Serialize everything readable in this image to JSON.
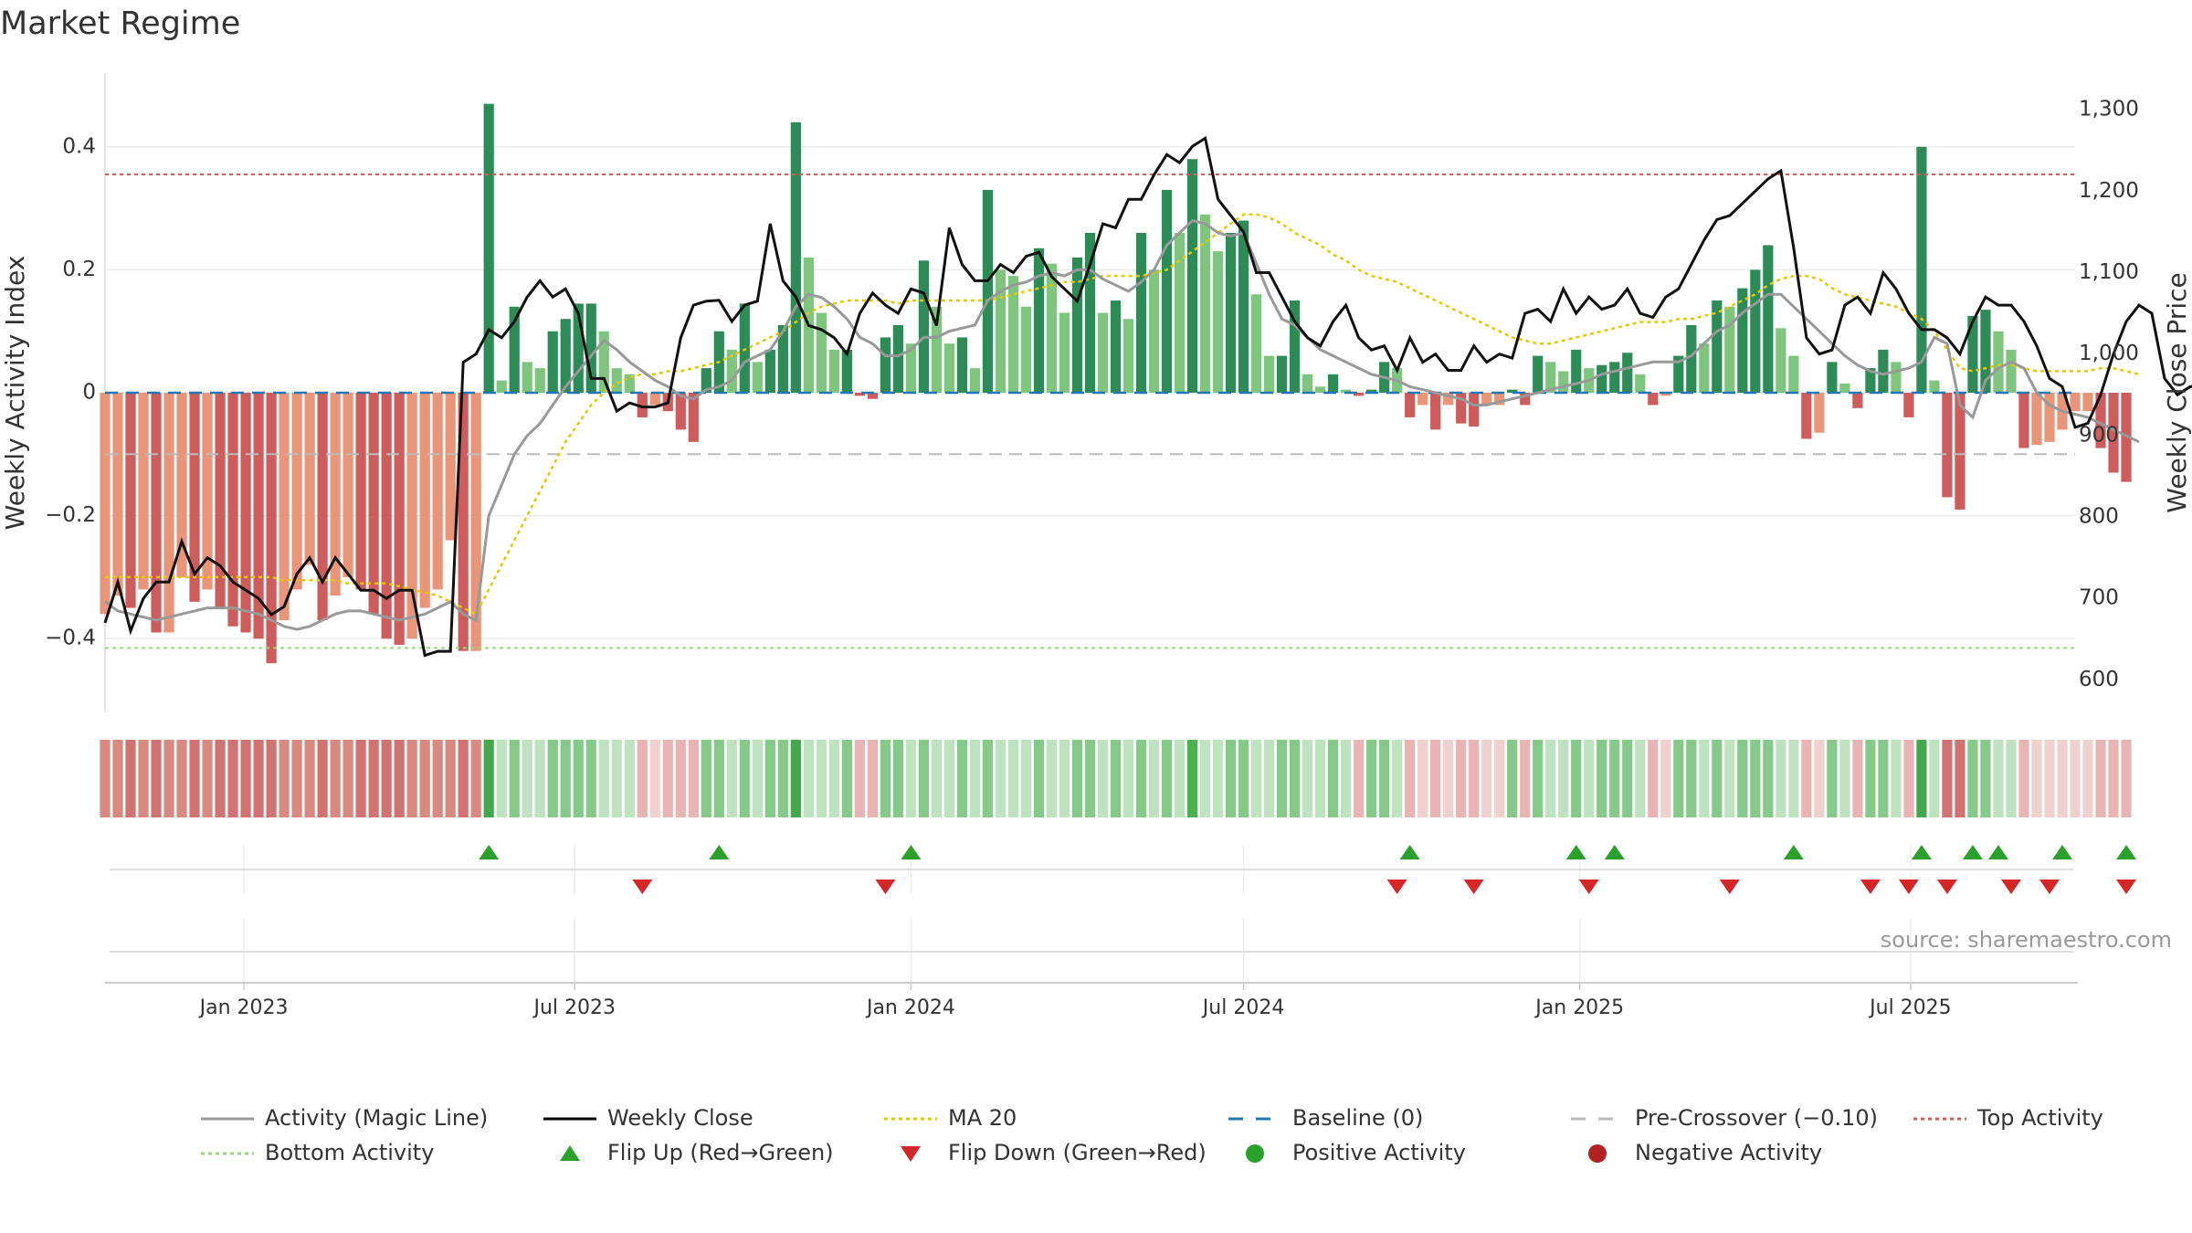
{
  "title": "Market Regime",
  "source": "source: sharemaestro.com",
  "legend": [
    {
      "label": "Activity (Magic Line)",
      "kind": "line",
      "color": "#999999",
      "dash": "solid"
    },
    {
      "label": "Weekly Close",
      "kind": "line",
      "color": "#000000",
      "dash": "solid"
    },
    {
      "label": "MA 20",
      "kind": "line",
      "color": "#e6c800",
      "dash": "dot"
    },
    {
      "label": "Baseline (0)",
      "kind": "line",
      "color": "#1f77b4",
      "dash": "dash"
    },
    {
      "label": "Pre-Crossover (−0.10)",
      "kind": "line",
      "color": "#bbbbbb",
      "dash": "dash"
    },
    {
      "label": "Top Activity",
      "kind": "line",
      "color": "#e05555",
      "dash": "dot"
    },
    {
      "label": "Bottom Activity",
      "kind": "line",
      "color": "#9cd67f",
      "dash": "dot"
    },
    {
      "label": "Flip Up (Red→Green)",
      "kind": "tri-up",
      "color": "#2ca02c"
    },
    {
      "label": "Flip Down (Green→Red)",
      "kind": "tri-down",
      "color": "#d62728"
    },
    {
      "label": "Positive Activity",
      "kind": "dot",
      "color": "#2ca02c"
    },
    {
      "label": "Negative Activity",
      "kind": "dot",
      "color": "#b22222"
    }
  ],
  "chart_data": {
    "type": "bar",
    "ylabel": "Weekly Activity Index",
    "y2label": "Weekly Close Price",
    "ylim": [
      -0.52,
      0.52
    ],
    "y2lim": [
      560,
      1345
    ],
    "yticks": [
      {
        "v": 0.4,
        "label": "0.4"
      },
      {
        "v": 0.2,
        "label": "0.2"
      },
      {
        "v": 0,
        "label": "0"
      },
      {
        "v": -0.2,
        "label": "−0.2"
      },
      {
        "v": -0.4,
        "label": "−0.4"
      }
    ],
    "y2ticks": [
      {
        "v": 1300,
        "label": "1,300"
      },
      {
        "v": 1200,
        "label": "1,200"
      },
      {
        "v": 1100,
        "label": "1,100"
      },
      {
        "v": 1000,
        "label": "1,000"
      },
      {
        "v": 900,
        "label": "900"
      },
      {
        "v": 800,
        "label": "800"
      },
      {
        "v": 700,
        "label": "700"
      },
      {
        "v": 600,
        "label": "600"
      }
    ],
    "xlim": [
      "2022-10-17",
      "2025-09-29"
    ],
    "xticks": [
      {
        "date": "2023-01-01",
        "label": "Jan 2023"
      },
      {
        "date": "2023-07-01",
        "label": "Jul 2023"
      },
      {
        "date": "2024-01-01",
        "label": "Jan 2024"
      },
      {
        "date": "2024-07-01",
        "label": "Jul 2024"
      },
      {
        "date": "2025-01-01",
        "label": "Jan 2025"
      },
      {
        "date": "2025-07-01",
        "label": "Jul 2025"
      }
    ],
    "start_week": "2022-10-17",
    "bars": [
      -0.36,
      -0.33,
      -0.35,
      -0.32,
      -0.39,
      -0.39,
      -0.3,
      -0.34,
      -0.32,
      -0.35,
      -0.38,
      -0.39,
      -0.4,
      -0.44,
      -0.37,
      -0.32,
      -0.28,
      -0.37,
      -0.33,
      -0.3,
      -0.32,
      -0.36,
      -0.4,
      -0.41,
      -0.4,
      -0.35,
      -0.32,
      -0.24,
      -0.42,
      -0.42,
      0.47,
      0.02,
      0.14,
      0.05,
      0.04,
      0.1,
      0.12,
      0.145,
      0.145,
      0.1,
      0.04,
      0.03,
      -0.04,
      -0.02,
      -0.03,
      -0.06,
      -0.08,
      0.04,
      0.1,
      0.07,
      0.145,
      0.05,
      0.07,
      0.11,
      0.44,
      0.22,
      0.13,
      0.07,
      0.07,
      -0.005,
      -0.01,
      0.09,
      0.11,
      0.08,
      0.215,
      0.14,
      0.08,
      0.09,
      0.04,
      0.33,
      0.2,
      0.19,
      0.14,
      0.235,
      0.21,
      0.13,
      0.22,
      0.26,
      0.13,
      0.15,
      0.12,
      0.26,
      0.2,
      0.33,
      0.26,
      0.38,
      0.29,
      0.23,
      0.26,
      0.28,
      0.16,
      0.06,
      0.06,
      0.15,
      0.03,
      0.01,
      0.03,
      0.005,
      -0.005,
      0.005,
      0.05,
      0.04,
      -0.04,
      -0.02,
      -0.06,
      -0.02,
      -0.05,
      -0.055,
      -0.02,
      -0.02,
      0.005,
      -0.02,
      0.06,
      0.05,
      0.035,
      0.07,
      0.04,
      0.045,
      0.05,
      0.065,
      0.03,
      -0.02,
      -0.005,
      0.06,
      0.11,
      0.08,
      0.15,
      0.14,
      0.17,
      0.2,
      0.24,
      0.105,
      0.06,
      -0.075,
      -0.065,
      0.05,
      0.015,
      -0.025,
      0.04,
      0.07,
      0.05,
      -0.04,
      0.4,
      0.02,
      -0.17,
      -0.19,
      0.125,
      0.135,
      0.1,
      0.07,
      -0.09,
      -0.085,
      -0.08,
      -0.06,
      -0.03,
      -0.03,
      -0.09,
      -0.13,
      -0.145
    ],
    "flip_up": [
      30,
      48,
      63,
      102,
      115,
      118,
      132,
      142,
      146,
      148,
      153,
      158
    ],
    "flip_down": [
      42,
      61,
      101,
      107,
      116,
      127,
      138,
      141,
      144,
      149,
      152,
      158
    ],
    "close": [
      670,
      720,
      660,
      700,
      720,
      720,
      770,
      730,
      750,
      740,
      720,
      710,
      700,
      680,
      690,
      730,
      750,
      720,
      750,
      730,
      710,
      710,
      700,
      710,
      710,
      630,
      635,
      635,
      990,
      1000,
      1030,
      1020,
      1040,
      1070,
      1090,
      1070,
      1080,
      1050,
      970,
      970,
      930,
      940,
      935,
      935,
      940,
      1020,
      1060,
      1065,
      1066,
      1040,
      1060,
      1065,
      1160,
      1090,
      1070,
      1035,
      1030,
      1020,
      1000,
      1050,
      1075,
      1060,
      1050,
      1080,
      1075,
      1035,
      1155,
      1110,
      1090,
      1090,
      1110,
      1100,
      1120,
      1125,
      1095,
      1080,
      1065,
      1110,
      1160,
      1155,
      1190,
      1190,
      1220,
      1245,
      1235,
      1255,
      1265,
      1190,
      1170,
      1150,
      1100,
      1100,
      1070,
      1040,
      1020,
      1010,
      1040,
      1060,
      1020,
      1005,
      1010,
      980,
      1020,
      990,
      1000,
      980,
      980,
      1010,
      990,
      1000,
      995,
      1050,
      1055,
      1040,
      1080,
      1050,
      1070,
      1055,
      1060,
      1080,
      1050,
      1045,
      1070,
      1080,
      1110,
      1140,
      1165,
      1170,
      1185,
      1200,
      1215,
      1225,
      1130,
      1020,
      1000,
      1005,
      1060,
      1070,
      1050,
      1100,
      1080,
      1050,
      1030,
      1030,
      1020,
      1000,
      1040,
      1070,
      1060,
      1060,
      1040,
      1010,
      970,
      960,
      910,
      915,
      950,
      1000,
      1040,
      1060,
      1050,
      970,
      950,
      960,
      960,
      980,
      990,
      1000,
      1010,
      960,
      950,
      940
    ],
    "magic_line": [
      -0.34,
      -0.355,
      -0.36,
      -0.365,
      -0.37,
      -0.365,
      -0.36,
      -0.355,
      -0.35,
      -0.35,
      -0.35,
      -0.355,
      -0.36,
      -0.37,
      -0.38,
      -0.385,
      -0.38,
      -0.37,
      -0.36,
      -0.355,
      -0.355,
      -0.36,
      -0.365,
      -0.37,
      -0.365,
      -0.36,
      -0.35,
      -0.34,
      -0.36,
      -0.37,
      -0.2,
      -0.15,
      -0.1,
      -0.07,
      -0.05,
      -0.02,
      0.01,
      0.035,
      0.06,
      0.085,
      0.07,
      0.05,
      0.035,
      0.02,
      0.01,
      -0.005,
      -0.01,
      0.005,
      0.01,
      0.02,
      0.05,
      0.06,
      0.07,
      0.1,
      0.14,
      0.16,
      0.155,
      0.14,
      0.12,
      0.09,
      0.08,
      0.06,
      0.06,
      0.07,
      0.09,
      0.09,
      0.1,
      0.105,
      0.11,
      0.15,
      0.165,
      0.175,
      0.18,
      0.19,
      0.195,
      0.19,
      0.2,
      0.2,
      0.185,
      0.175,
      0.165,
      0.18,
      0.2,
      0.24,
      0.26,
      0.28,
      0.275,
      0.26,
      0.255,
      0.26,
      0.21,
      0.16,
      0.12,
      0.11,
      0.09,
      0.07,
      0.06,
      0.05,
      0.04,
      0.03,
      0.025,
      0.02,
      0.01,
      0.005,
      0.0,
      -0.005,
      -0.01,
      -0.02,
      -0.02,
      -0.015,
      -0.01,
      -0.005,
      0.0,
      0.005,
      0.01,
      0.015,
      0.02,
      0.03,
      0.035,
      0.04,
      0.045,
      0.05,
      0.05,
      0.05,
      0.06,
      0.08,
      0.1,
      0.11,
      0.13,
      0.145,
      0.16,
      0.16,
      0.14,
      0.12,
      0.1,
      0.08,
      0.06,
      0.045,
      0.035,
      0.03,
      0.035,
      0.04,
      0.05,
      0.09,
      0.08,
      -0.02,
      -0.04,
      0.02,
      0.04,
      0.05,
      0.04,
      0.0,
      -0.02,
      -0.03,
      -0.035,
      -0.04,
      -0.05,
      -0.06,
      -0.07,
      -0.08
    ],
    "ma20": [
      -0.3,
      -0.3,
      -0.3,
      -0.3,
      -0.3,
      -0.3,
      -0.3,
      -0.3,
      -0.3,
      -0.3,
      -0.3,
      -0.3,
      -0.3,
      -0.3,
      -0.305,
      -0.305,
      -0.305,
      -0.305,
      -0.305,
      -0.31,
      -0.31,
      -0.31,
      -0.31,
      -0.315,
      -0.32,
      -0.325,
      -0.33,
      -0.34,
      -0.35,
      -0.36,
      -0.32,
      -0.28,
      -0.24,
      -0.2,
      -0.16,
      -0.12,
      -0.08,
      -0.05,
      -0.02,
      0.0,
      0.015,
      0.025,
      0.03,
      0.03,
      0.035,
      0.035,
      0.04,
      0.045,
      0.05,
      0.06,
      0.07,
      0.08,
      0.09,
      0.1,
      0.115,
      0.13,
      0.14,
      0.145,
      0.15,
      0.15,
      0.15,
      0.15,
      0.145,
      0.15,
      0.15,
      0.15,
      0.15,
      0.15,
      0.15,
      0.15,
      0.155,
      0.16,
      0.165,
      0.17,
      0.175,
      0.18,
      0.18,
      0.185,
      0.19,
      0.19,
      0.19,
      0.19,
      0.195,
      0.2,
      0.215,
      0.23,
      0.245,
      0.26,
      0.275,
      0.29,
      0.29,
      0.285,
      0.275,
      0.26,
      0.25,
      0.24,
      0.225,
      0.215,
      0.2,
      0.19,
      0.185,
      0.18,
      0.17,
      0.16,
      0.15,
      0.14,
      0.13,
      0.12,
      0.11,
      0.1,
      0.09,
      0.085,
      0.08,
      0.08,
      0.085,
      0.09,
      0.095,
      0.1,
      0.105,
      0.11,
      0.115,
      0.115,
      0.115,
      0.12,
      0.12,
      0.125,
      0.13,
      0.14,
      0.15,
      0.16,
      0.175,
      0.185,
      0.19,
      0.19,
      0.185,
      0.17,
      0.16,
      0.155,
      0.15,
      0.145,
      0.14,
      0.13,
      0.12,
      0.1,
      0.07,
      0.04,
      0.035,
      0.04,
      0.045,
      0.045,
      0.04,
      0.035,
      0.035,
      0.035,
      0.035,
      0.035,
      0.04,
      0.04,
      0.035,
      0.03
    ],
    "top_activity": 0.355,
    "bottom_activity": -0.415,
    "pre_crossover": -0.1,
    "baseline": 0
  }
}
